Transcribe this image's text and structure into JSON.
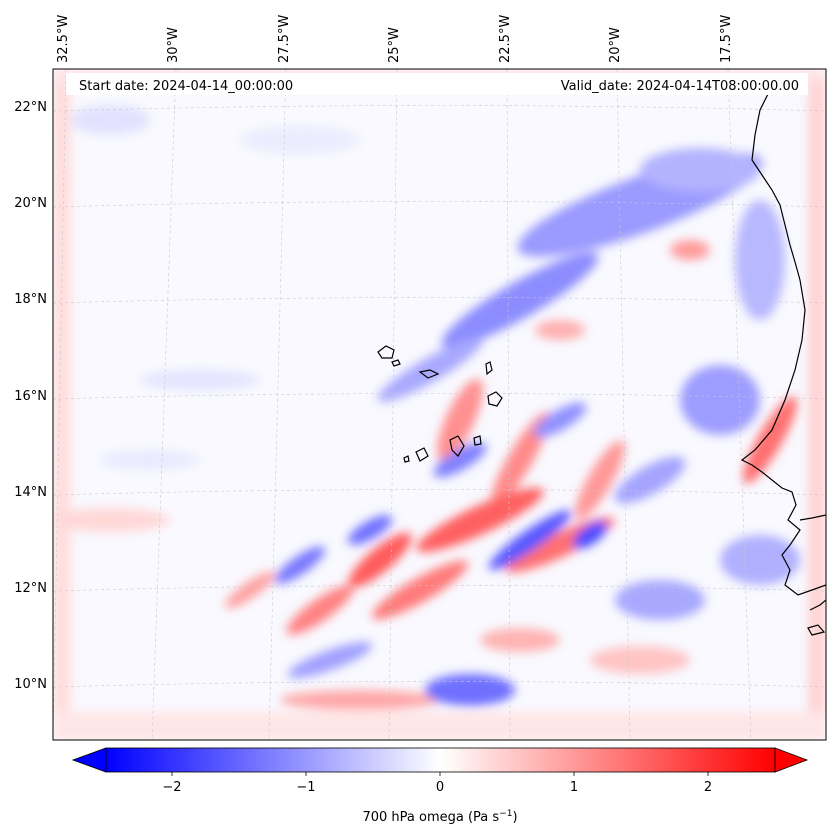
{
  "info": {
    "start_date": "Start date: 2024-04-14_00:00:00",
    "valid_date": "Valid_date: 2024-04-14T08:00:00.00"
  },
  "map": {
    "lon_labels": [
      "32.5°W",
      "30°W",
      "27.5°W",
      "25°W",
      "22.5°W",
      "20°W",
      "17.5°W"
    ],
    "lat_labels": [
      "22°N",
      "20°N",
      "18°N",
      "16°N",
      "14°N",
      "12°N",
      "10°N"
    ],
    "field": "700 hPa omega",
    "colormap": {
      "negative": "#0000ff",
      "zero": "#ffffff",
      "positive": "#ff0000"
    }
  },
  "colorbar": {
    "ticks": [
      "−2",
      "−1",
      "0",
      "1",
      "2"
    ],
    "label_prefix": "700 hPa omega (Pa s",
    "label_exp": "−1",
    "label_suffix": ")",
    "range": [
      -2.75,
      2.75
    ],
    "extend": "both"
  }
}
